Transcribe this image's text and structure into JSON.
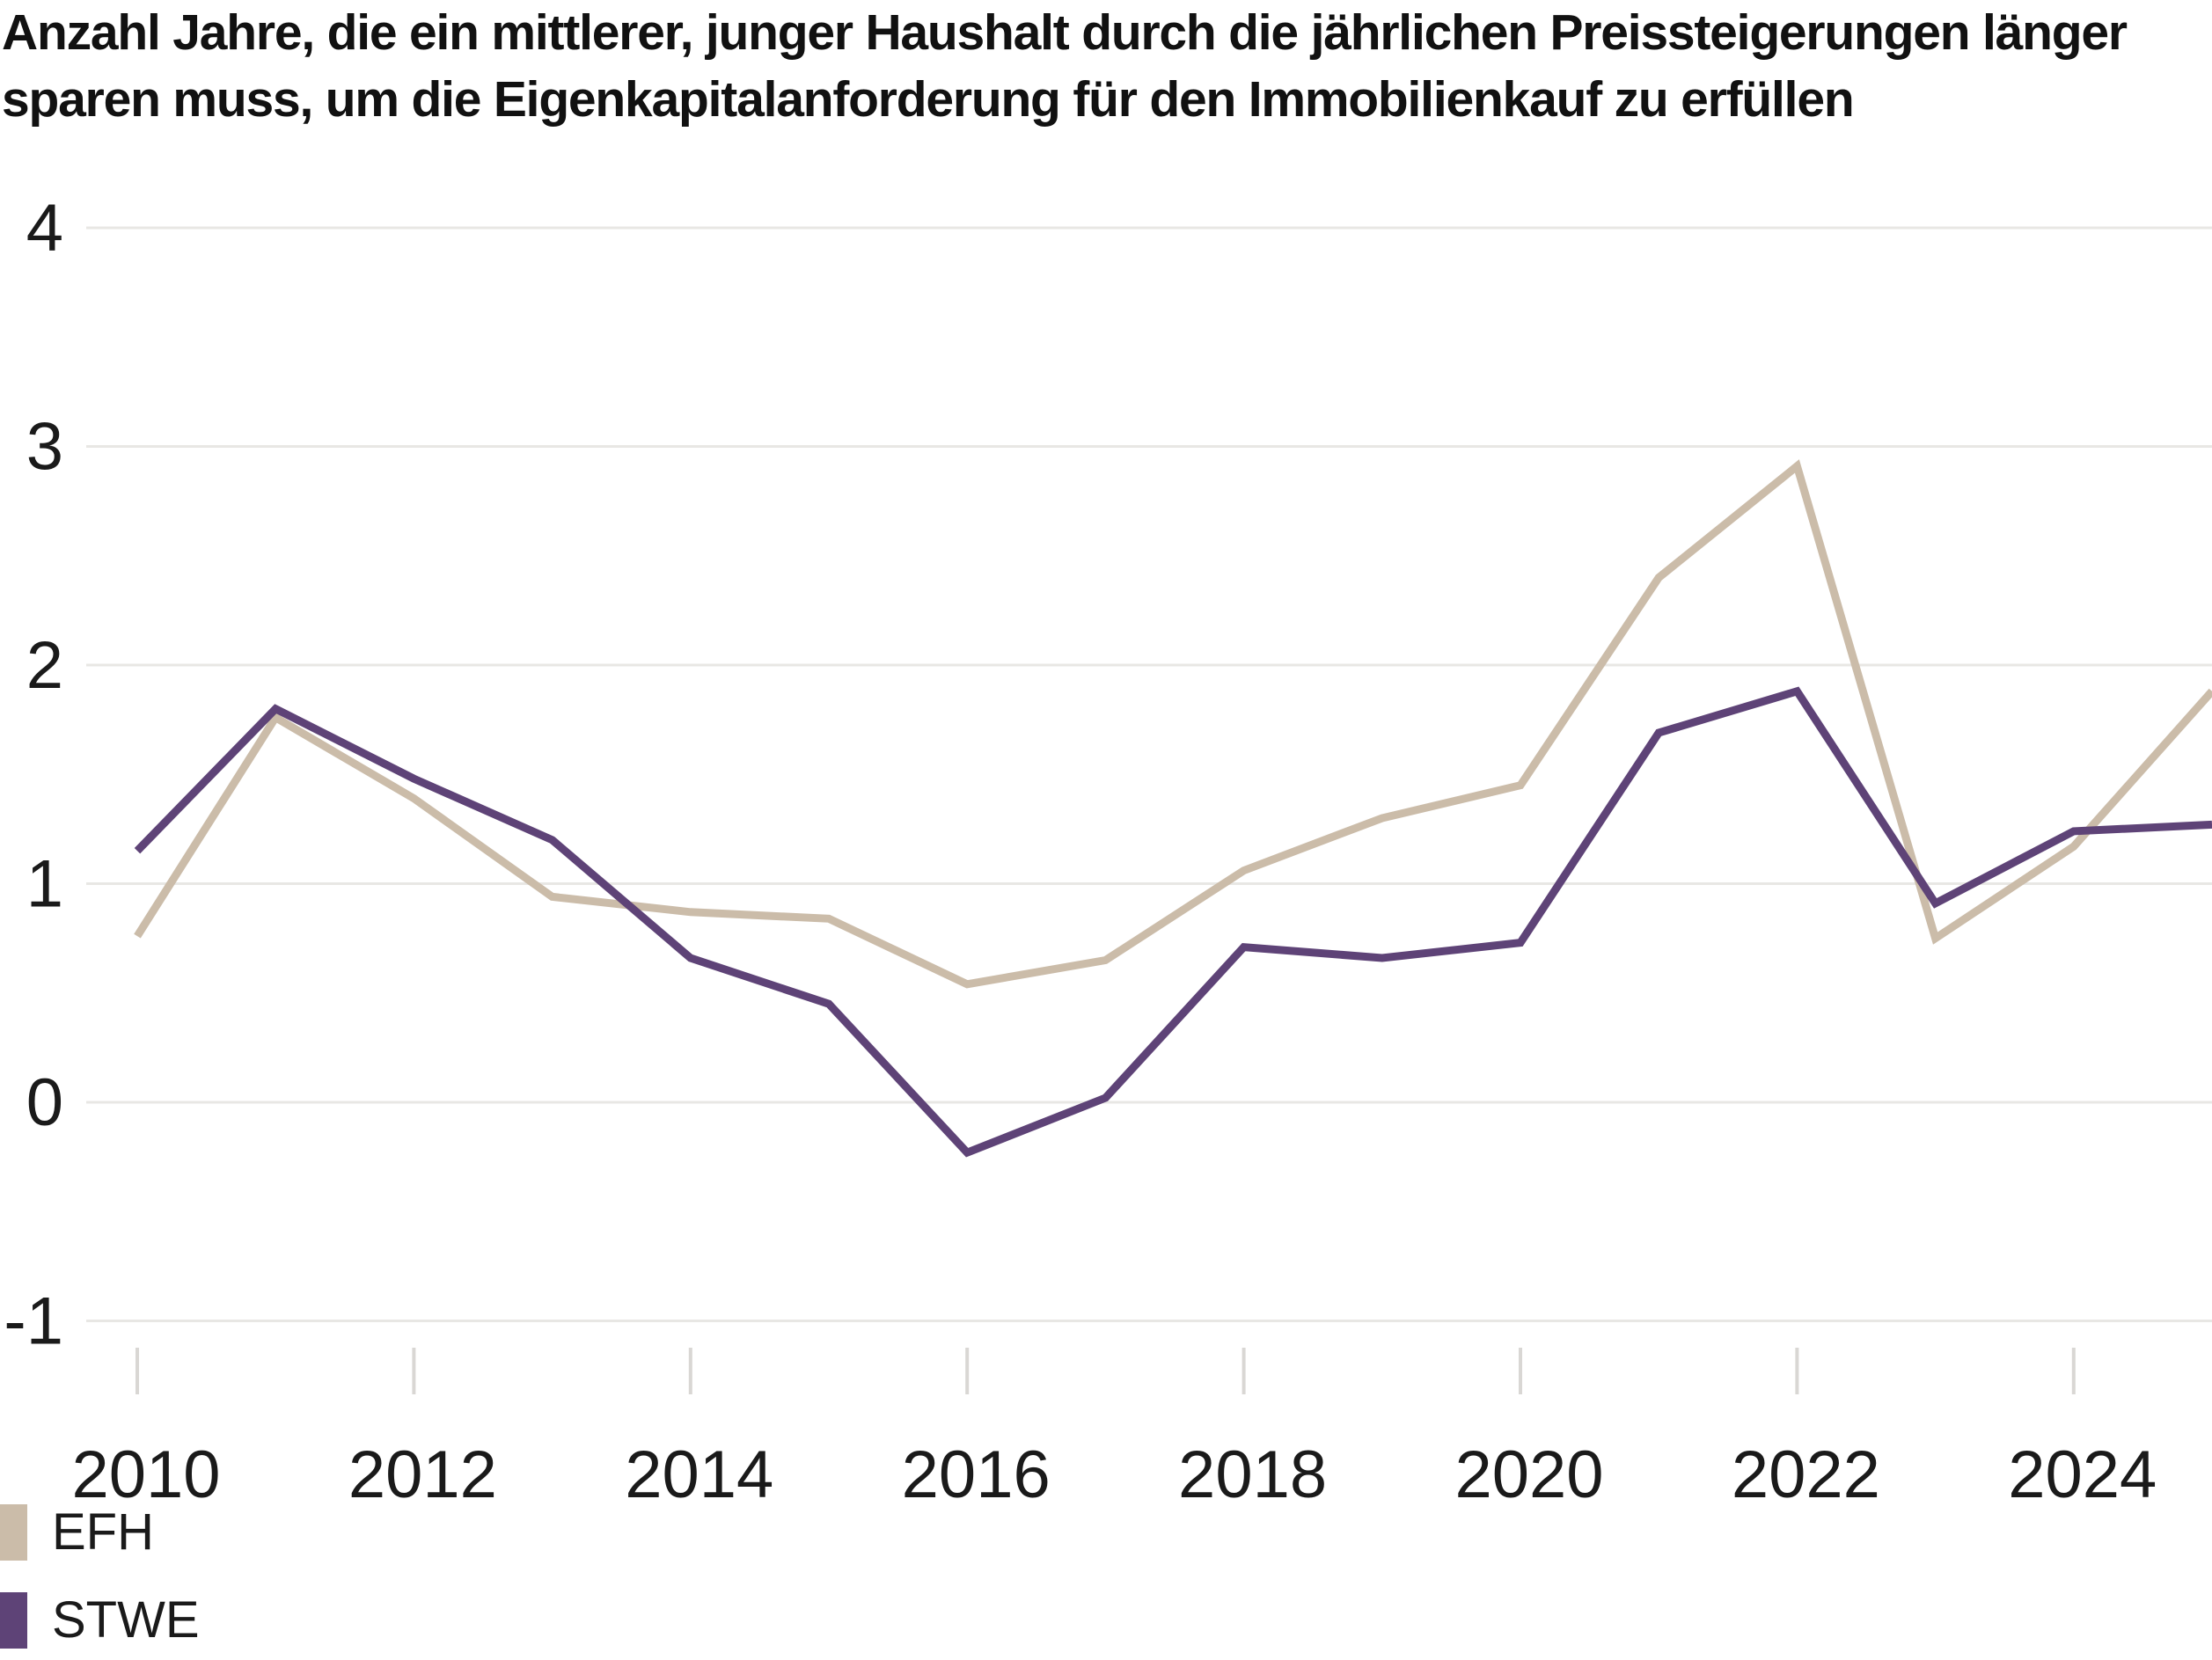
{
  "title": "Anzahl Jahre, die ein mittlerer, junger Haushalt durch die jährlichen Preissteigerungen länger sparen muss, um die Eigenkapitalanforderung für den Immobilienkauf zu erfüllen",
  "legend": [
    {
      "label": "EFH",
      "color": "#cbbca9"
    },
    {
      "label": "STWE",
      "color": "#5e4377"
    }
  ],
  "style": {
    "background": "#ffffff",
    "text_color": "#1a1a1a",
    "grid_color": "#e8e7e4",
    "tick_color": "#d9d7d4",
    "efh_color": "#cbbca9",
    "stwe_color": "#5e4377"
  },
  "chart_data": {
    "type": "line",
    "title": "Anzahl Jahre, die ein mittlerer, junger Haushalt durch die jährlichen Preissteigerungen länger sparen muss, um die Eigenkapitalanforderung für den Immobilienkauf zu erfüllen",
    "xlabel": "",
    "ylabel": "",
    "x": [
      2010,
      2011,
      2012,
      2013,
      2014,
      2015,
      2016,
      2017,
      2018,
      2019,
      2020,
      2021,
      2022,
      2023,
      2024,
      2025
    ],
    "series": [
      {
        "name": "EFH",
        "color": "#cbbca9",
        "values": [
          0.76,
          1.76,
          1.39,
          0.94,
          0.87,
          0.84,
          0.54,
          0.65,
          1.06,
          1.3,
          1.45,
          2.4,
          2.91,
          0.75,
          1.17,
          1.88
        ]
      },
      {
        "name": "STWE",
        "color": "#5e4377",
        "values": [
          1.15,
          1.8,
          1.48,
          1.2,
          0.66,
          0.45,
          -0.23,
          0.02,
          0.71,
          0.66,
          0.73,
          1.69,
          1.88,
          0.91,
          1.24,
          1.27
        ]
      }
    ],
    "ylim": [
      -1,
      4
    ],
    "yticks": [
      4,
      3,
      2,
      1,
      0,
      -1
    ],
    "xticks": [
      2010,
      2012,
      2014,
      2016,
      2018,
      2020,
      2022,
      2024
    ],
    "grid": true,
    "legend_position": "bottom-left"
  }
}
